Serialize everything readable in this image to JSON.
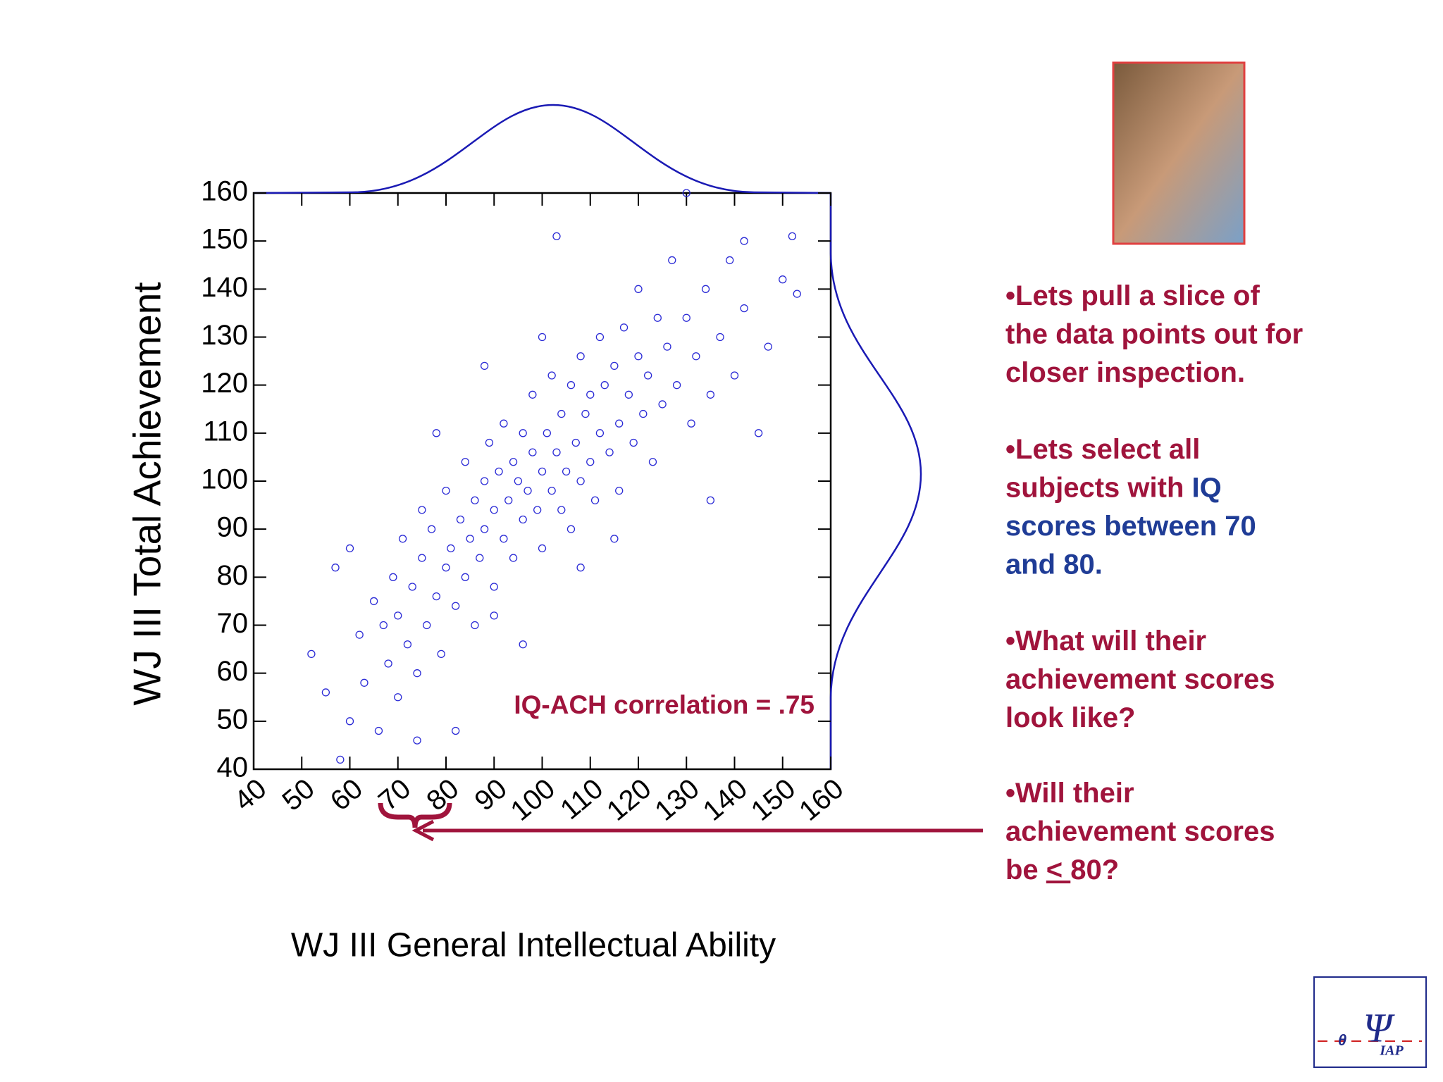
{
  "chart_data": {
    "type": "scatter",
    "x_label": "WJ III General Intellectual Ability",
    "y_label": "WJ III Total Achievement",
    "annotation": "IQ-ACH correlation = .75",
    "color": "#2a2ad6",
    "xlim": [
      40,
      160
    ],
    "ylim": [
      40,
      160
    ],
    "xticks": [
      40,
      50,
      60,
      70,
      80,
      90,
      100,
      110,
      120,
      130,
      140,
      150,
      160
    ],
    "yticks": [
      40,
      50,
      60,
      70,
      80,
      90,
      100,
      110,
      120,
      130,
      140,
      150,
      160
    ],
    "x": [
      52,
      55,
      58,
      60,
      62,
      63,
      65,
      66,
      67,
      68,
      69,
      70,
      70,
      71,
      72,
      73,
      74,
      75,
      75,
      76,
      77,
      78,
      79,
      80,
      80,
      81,
      82,
      83,
      84,
      84,
      85,
      86,
      86,
      87,
      88,
      88,
      89,
      90,
      90,
      91,
      92,
      92,
      93,
      94,
      94,
      95,
      96,
      96,
      97,
      98,
      98,
      99,
      100,
      100,
      101,
      102,
      102,
      103,
      104,
      104,
      105,
      106,
      106,
      107,
      108,
      108,
      109,
      110,
      110,
      111,
      112,
      112,
      113,
      114,
      115,
      116,
      116,
      117,
      118,
      119,
      120,
      120,
      121,
      122,
      123,
      124,
      125,
      126,
      127,
      128,
      130,
      131,
      132,
      134,
      135,
      137,
      139,
      140,
      142,
      145,
      147,
      150,
      152,
      153,
      103,
      108,
      88,
      96,
      78,
      74,
      130,
      135,
      142,
      82,
      57,
      60,
      115,
      90,
      100
    ],
    "values": [
      64,
      56,
      42,
      86,
      68,
      58,
      75,
      48,
      70,
      62,
      80,
      72,
      55,
      88,
      66,
      78,
      60,
      84,
      94,
      70,
      90,
      76,
      64,
      82,
      98,
      86,
      74,
      92,
      80,
      104,
      88,
      96,
      70,
      84,
      100,
      90,
      108,
      94,
      78,
      102,
      88,
      112,
      96,
      104,
      84,
      100,
      92,
      110,
      98,
      106,
      118,
      94,
      102,
      86,
      110,
      98,
      122,
      106,
      94,
      114,
      102,
      120,
      90,
      108,
      100,
      126,
      114,
      104,
      118,
      96,
      110,
      130,
      120,
      106,
      124,
      112,
      98,
      132,
      118,
      108,
      126,
      140,
      114,
      122,
      104,
      134,
      116,
      128,
      146,
      120,
      134,
      112,
      126,
      140,
      118,
      130,
      146,
      122,
      136,
      110,
      128,
      142,
      151,
      139,
      151,
      82,
      124,
      66,
      110,
      46,
      160,
      96,
      150,
      48,
      82,
      50,
      88,
      72,
      130
    ]
  },
  "bullets": [
    [
      [
        {
          "text": "•Lets pull a slice of",
          "style": "red"
        }
      ],
      [
        {
          "text": "the data points out for",
          "style": "red"
        }
      ],
      [
        {
          "text": "closer inspection.",
          "style": "red"
        }
      ]
    ],
    [
      [
        {
          "text": "•Lets select all",
          "style": "red"
        }
      ],
      [
        {
          "text": "subjects with ",
          "style": "red"
        },
        {
          "text": "IQ",
          "style": "blue"
        }
      ],
      [
        {
          "text": "scores between 70",
          "style": "blue"
        }
      ],
      [
        {
          "text": "and 80.",
          "style": "blue"
        }
      ]
    ],
    [
      [
        {
          "text": "•What will their",
          "style": "red"
        }
      ],
      [
        {
          "text": "achievement  scores",
          "style": "red"
        }
      ],
      [
        {
          "text": "look like?",
          "style": "red"
        }
      ]
    ],
    [
      [
        {
          "text": "•Will their",
          "style": "red"
        }
      ],
      [
        {
          "text": "achievement scores",
          "style": "red"
        }
      ],
      [
        {
          "text": "be ",
          "style": "red"
        },
        {
          "text": "< ",
          "style": "underline"
        },
        {
          "text": "80?",
          "style": "red"
        }
      ]
    ]
  ],
  "logo": {
    "theta": "θ",
    "psi": "Ψ",
    "name": "IAP"
  }
}
